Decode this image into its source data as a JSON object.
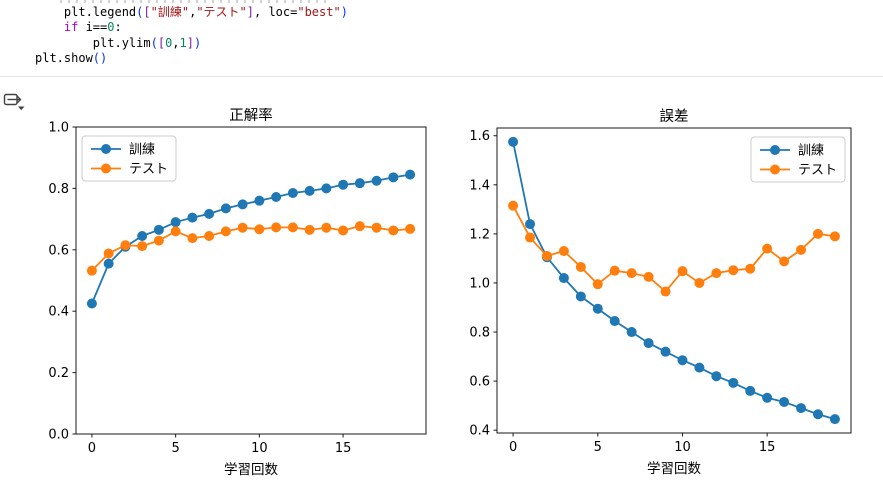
{
  "code": {
    "lines": [
      {
        "tokens": [
          {
            "text": "    plt.legend",
            "color": "plain"
          },
          {
            "text": "(",
            "color": "paren"
          },
          {
            "text": "[",
            "color": "bracket"
          },
          {
            "text": "\"訓練\"",
            "color": "string"
          },
          {
            "text": ",",
            "color": "plain"
          },
          {
            "text": "\"テスト\"",
            "color": "string"
          },
          {
            "text": "]",
            "color": "bracket"
          },
          {
            "text": ", loc=",
            "color": "plain"
          },
          {
            "text": "\"best\"",
            "color": "string"
          },
          {
            "text": ")",
            "color": "paren"
          }
        ]
      },
      {
        "tokens": [
          {
            "text": "    ",
            "color": "plain"
          },
          {
            "text": "if",
            "color": "keyword"
          },
          {
            "text": " i==",
            "color": "plain"
          },
          {
            "text": "0",
            "color": "number"
          },
          {
            "text": ":",
            "color": "plain"
          }
        ]
      },
      {
        "tokens": [
          {
            "text": "        plt.ylim",
            "color": "plain"
          },
          {
            "text": "(",
            "color": "paren"
          },
          {
            "text": "[",
            "color": "bracket"
          },
          {
            "text": "0",
            "color": "number"
          },
          {
            "text": ",",
            "color": "plain"
          },
          {
            "text": "1",
            "color": "number"
          },
          {
            "text": "]",
            "color": "bracket"
          },
          {
            "text": ")",
            "color": "paren"
          }
        ]
      },
      {
        "tokens": [
          {
            "text": "plt.show",
            "color": "plain"
          },
          {
            "text": "(",
            "color": "paren"
          },
          {
            "text": ")",
            "color": "paren"
          }
        ]
      }
    ]
  },
  "output_toolbar": {
    "icon": "change-presentation-icon",
    "icon_color": "#424242"
  },
  "chart_data": [
    {
      "type": "line",
      "title": "正解率",
      "xlabel": "学習回数",
      "x": [
        0,
        1,
        2,
        3,
        4,
        5,
        6,
        7,
        8,
        9,
        10,
        11,
        12,
        13,
        14,
        15,
        16,
        17,
        18,
        19
      ],
      "series": [
        {
          "name": "訓練",
          "color": "#1f77b4",
          "values": [
            0.425,
            0.555,
            0.61,
            0.645,
            0.665,
            0.69,
            0.705,
            0.717,
            0.735,
            0.748,
            0.76,
            0.772,
            0.785,
            0.792,
            0.8,
            0.812,
            0.817,
            0.825,
            0.836,
            0.845
          ]
        },
        {
          "name": "テスト",
          "color": "#ff7f0e",
          "values": [
            0.532,
            0.588,
            0.615,
            0.612,
            0.63,
            0.66,
            0.638,
            0.645,
            0.66,
            0.672,
            0.667,
            0.673,
            0.673,
            0.665,
            0.672,
            0.663,
            0.677,
            0.672,
            0.663,
            0.668
          ]
        }
      ],
      "xlim": [
        -0.95,
        19.95
      ],
      "ylim": [
        0,
        1
      ],
      "xticks": [
        0,
        5,
        10,
        15
      ],
      "yticks": [
        0.0,
        0.2,
        0.4,
        0.6,
        0.8,
        1.0
      ],
      "ytick_labels": [
        "0.0",
        "0.2",
        "0.4",
        "0.6",
        "0.8",
        "1.0"
      ],
      "grid": false,
      "legend": {
        "position": "upper-left",
        "entries": [
          "訓練",
          "テスト"
        ]
      }
    },
    {
      "type": "line",
      "title": "誤差",
      "xlabel": "学習回数",
      "x": [
        0,
        1,
        2,
        3,
        4,
        5,
        6,
        7,
        8,
        9,
        10,
        11,
        12,
        13,
        14,
        15,
        16,
        17,
        18,
        19
      ],
      "series": [
        {
          "name": "訓練",
          "color": "#1f77b4",
          "values": [
            1.575,
            1.24,
            1.105,
            1.02,
            0.945,
            0.895,
            0.845,
            0.8,
            0.755,
            0.72,
            0.685,
            0.655,
            0.62,
            0.593,
            0.56,
            0.532,
            0.515,
            0.49,
            0.465,
            0.445
          ]
        },
        {
          "name": "テスト",
          "color": "#ff7f0e",
          "values": [
            1.315,
            1.185,
            1.11,
            1.13,
            1.065,
            0.995,
            1.05,
            1.04,
            1.025,
            0.965,
            1.048,
            1.0,
            1.04,
            1.052,
            1.058,
            1.14,
            1.088,
            1.135,
            1.2,
            1.19
          ]
        }
      ],
      "xlim": [
        -0.95,
        19.95
      ],
      "ylim": [
        0.3885,
        1.6315
      ],
      "xticks": [
        0,
        5,
        10,
        15
      ],
      "yticks": [
        0.4,
        0.6,
        0.8,
        1.0,
        1.2,
        1.4,
        1.6
      ],
      "ytick_labels": [
        "0.4",
        "0.6",
        "0.8",
        "1.0",
        "1.2",
        "1.4",
        "1.6"
      ],
      "grid": false,
      "legend": {
        "position": "upper-right",
        "entries": [
          "訓練",
          "テスト"
        ]
      }
    }
  ]
}
